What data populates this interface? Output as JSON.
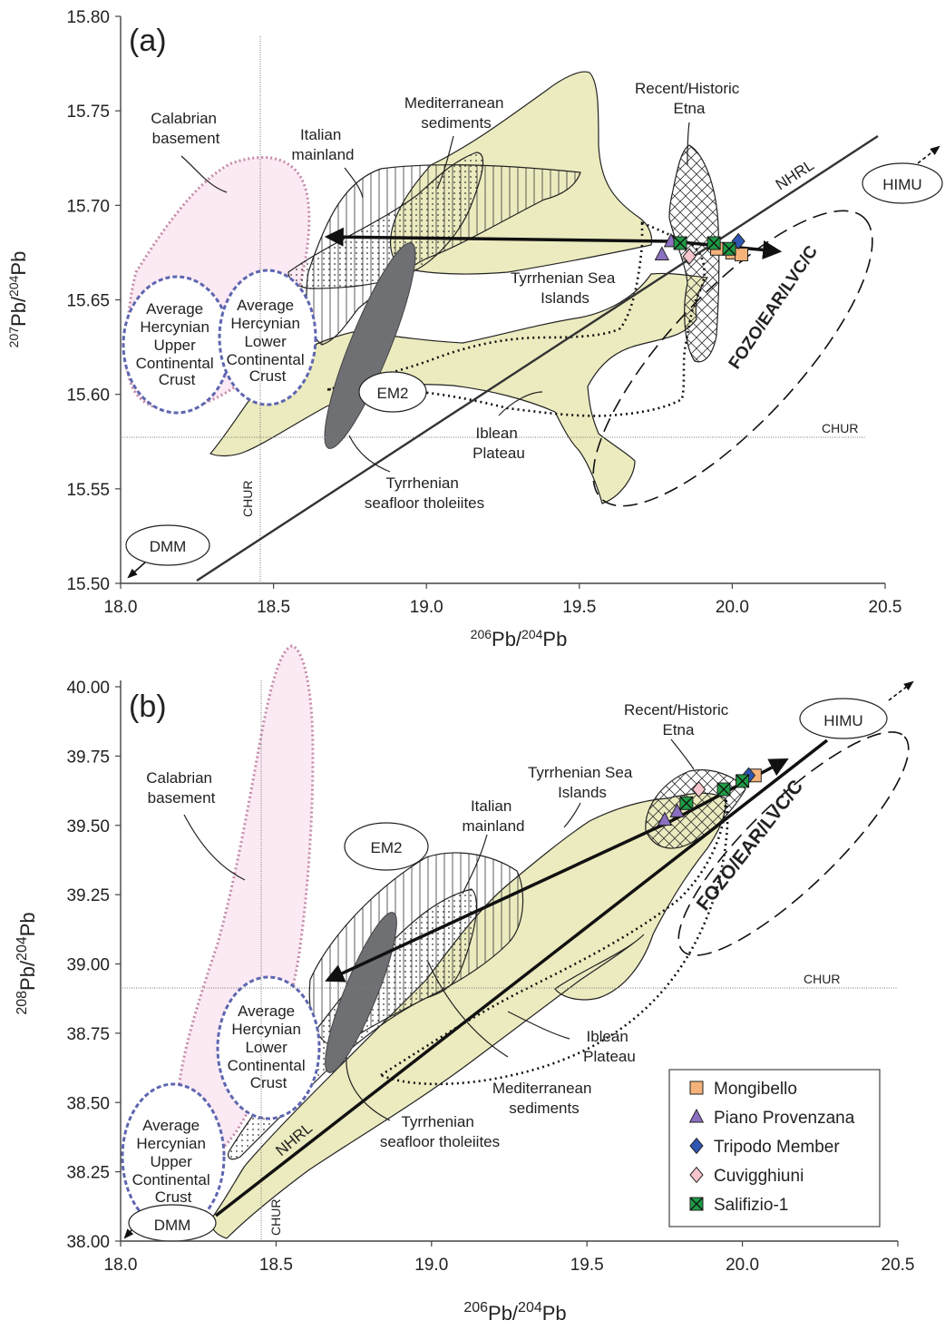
{
  "chart_data": [
    {
      "panel_label": "(a)",
      "type": "scatter",
      "xlabel_parts": [
        "206",
        "Pb/",
        "204",
        "Pb"
      ],
      "ylabel_parts": [
        "207",
        "Pb/",
        "204",
        "Pb"
      ],
      "xlim": [
        18.0,
        20.5
      ],
      "ylim": [
        15.5,
        15.8
      ],
      "x_ticks": [
        "18.0",
        "18.5",
        "19.0",
        "19.5",
        "20.0",
        "20.5"
      ],
      "y_ticks": [
        "15.50",
        "15.55",
        "15.60",
        "15.65",
        "15.70",
        "15.75",
        "15.80"
      ],
      "reference_lines": {
        "chur_x": 18.46,
        "chur_y": 15.578,
        "label": "CHUR"
      },
      "fields": {
        "calabrian": [
          "Calabrian",
          "basement"
        ],
        "italian": [
          "Italian",
          "mainland"
        ],
        "mediterranean": [
          "Mediterranean",
          "sediments"
        ],
        "recent": [
          "Recent/Historic",
          "Etna"
        ],
        "tyrrhenian_islands": [
          "Tyrrhenian Sea",
          "Islands"
        ],
        "hercynian_upper": [
          "Average",
          "Hercynian",
          "Upper",
          "Continental",
          "Crust"
        ],
        "hercynian_lower": [
          "Average",
          "Hercynian",
          "Lower",
          "Continental",
          "Crust"
        ],
        "iblean": [
          "Iblean",
          "Plateau"
        ],
        "tholeiites": [
          "Tyrrhenian",
          "seafloor tholeiites"
        ],
        "em2": "EM2",
        "dmm": "DMM",
        "himu": "HIMU",
        "nhrl": "NHRL",
        "fozo": "FOZO/EAR/LVC/C"
      },
      "series": [
        {
          "name": "Mongibello",
          "points": [
            [
              19.95,
              15.677
            ],
            [
              20.0,
              15.675
            ],
            [
              20.03,
              15.674
            ]
          ]
        },
        {
          "name": "Piano Provenzana",
          "points": [
            [
              19.77,
              15.674
            ],
            [
              19.8,
              15.681
            ]
          ]
        },
        {
          "name": "Tripodo Member",
          "points": [
            [
              20.02,
              15.681
            ]
          ]
        },
        {
          "name": "Cuvigghiuni",
          "points": [
            [
              19.86,
              15.673
            ]
          ]
        },
        {
          "name": "Salifizio-1",
          "points": [
            [
              19.83,
              15.68
            ],
            [
              19.94,
              15.68
            ],
            [
              19.99,
              15.677
            ]
          ]
        }
      ]
    },
    {
      "panel_label": "(b)",
      "type": "scatter",
      "xlabel_parts": [
        "206",
        "Pb/",
        "204",
        "Pb"
      ],
      "ylabel_parts": [
        "208",
        "Pb/",
        "204",
        "Pb"
      ],
      "xlim": [
        18.0,
        20.5
      ],
      "ylim": [
        38.0,
        40.0
      ],
      "x_ticks": [
        "18.0",
        "18.5",
        "19.0",
        "19.5",
        "20.0",
        "20.5"
      ],
      "y_ticks": [
        "38.00",
        "38.25",
        "38.50",
        "38.75",
        "39.00",
        "39.25",
        "39.50",
        "39.75",
        "40.00"
      ],
      "reference_lines": {
        "chur_x": 18.46,
        "chur_y": 38.92,
        "label": "CHUR"
      },
      "fields": {
        "calabrian": [
          "Calabrian",
          "basement"
        ],
        "italian": [
          "Italian",
          "mainland"
        ],
        "mediterranean": [
          "Mediterranean",
          "sediments"
        ],
        "recent": [
          "Recent/Historic",
          "Etna"
        ],
        "tyrrhenian_islands": [
          "Tyrrhenian Sea",
          "Islands"
        ],
        "hercynian_upper": [
          "Average",
          "Hercynian",
          "Upper",
          "Continental",
          "Crust"
        ],
        "hercynian_lower": [
          "Average",
          "Hercynian",
          "Lower",
          "Continental",
          "Crust"
        ],
        "iblean": [
          "Iblean",
          "Plateau"
        ],
        "tholeiites": [
          "Tyrrhenian",
          "seafloor tholeiites"
        ],
        "em2": "EM2",
        "dmm": "DMM",
        "himu": "HIMU",
        "nhrl": "NHRL",
        "fozo": "FOZO/EAR/LVC/C"
      },
      "series": [
        {
          "name": "Mongibello",
          "points": [
            [
              20.04,
              39.68
            ]
          ]
        },
        {
          "name": "Piano Provenzana",
          "points": [
            [
              19.75,
              39.52
            ],
            [
              19.79,
              39.55
            ]
          ]
        },
        {
          "name": "Tripodo Member",
          "points": [
            [
              20.02,
              39.68
            ]
          ]
        },
        {
          "name": "Cuvigghiuni",
          "points": [
            [
              19.86,
              39.63
            ]
          ]
        },
        {
          "name": "Salifizio-1",
          "points": [
            [
              19.82,
              39.58
            ],
            [
              19.94,
              39.63
            ],
            [
              20.0,
              39.66
            ]
          ]
        }
      ]
    }
  ],
  "legend": [
    {
      "label": "Mongibello",
      "marker": "square",
      "color": "#f5b27a"
    },
    {
      "label": "Piano Provenzana",
      "marker": "triangle",
      "color": "#8b6fc0"
    },
    {
      "label": "Tripodo Member",
      "marker": "diamond",
      "color": "#2f56b3"
    },
    {
      "label": "Cuvigghiuni",
      "marker": "diamond",
      "color": "#f6c4cc"
    },
    {
      "label": "Salifizio-1",
      "marker": "crossed-square",
      "color": "#1e9b45"
    }
  ],
  "colors": {
    "yellow_field": "#ecebbf",
    "pink_field": "#fbe9f3",
    "pink_border": "#c48aa8",
    "hercynian_border": "#5e66b0",
    "tholeiite_fill": "#6f7074"
  }
}
